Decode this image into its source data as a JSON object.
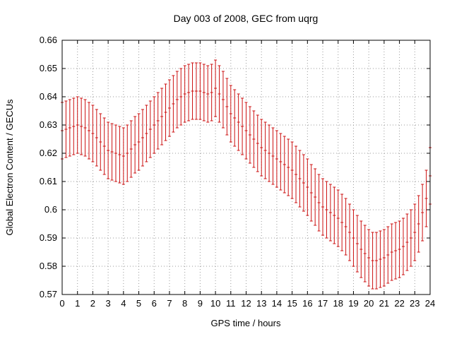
{
  "window": {
    "title": "Day 003 of 2008, GEC from uqrg"
  },
  "chart_data": {
    "type": "scatter",
    "style": "errorbars",
    "title": "Day 003 of 2008, GEC from uqrg",
    "xlabel": "GPS time / hours",
    "ylabel": "Global Electron Content / GECUs",
    "xlim": [
      0,
      24
    ],
    "ylim": [
      0.57,
      0.66
    ],
    "grid": true,
    "legend": "none",
    "series_color": "#cc1111",
    "frame_color": "#000000",
    "grid_color": "#9a9a9a",
    "xticks": [
      0,
      1,
      2,
      3,
      4,
      5,
      6,
      7,
      8,
      9,
      10,
      11,
      12,
      13,
      14,
      15,
      16,
      17,
      18,
      19,
      20,
      21,
      22,
      23,
      24
    ],
    "xtick_labels": [
      "0",
      "1",
      "2",
      "3",
      "4",
      "5",
      "6",
      "7",
      "8",
      "9",
      "10",
      "11",
      "12",
      "13",
      "14",
      "15",
      "16",
      "17",
      "18",
      "19",
      "20",
      "21",
      "22",
      "23",
      "24"
    ],
    "yticks": [
      0.57,
      0.58,
      0.59,
      0.6,
      0.61,
      0.62,
      0.63,
      0.64,
      0.65,
      0.66
    ],
    "ytick_labels": [
      "0.57",
      "0.58",
      "0.59",
      "0.6",
      "0.61",
      "0.62",
      "0.63",
      "0.64",
      "0.65",
      "0.66"
    ],
    "yerr": 0.01,
    "x": [
      0,
      0.25,
      0.5,
      0.75,
      1,
      1.25,
      1.5,
      1.75,
      2,
      2.25,
      2.5,
      2.75,
      3,
      3.25,
      3.5,
      3.75,
      4,
      4.25,
      4.5,
      4.75,
      5,
      5.25,
      5.5,
      5.75,
      6,
      6.25,
      6.5,
      6.75,
      7,
      7.25,
      7.5,
      7.75,
      8,
      8.25,
      8.5,
      8.75,
      9,
      9.25,
      9.5,
      9.75,
      10,
      10.25,
      10.5,
      10.75,
      11,
      11.25,
      11.5,
      11.75,
      12,
      12.25,
      12.5,
      12.75,
      13,
      13.25,
      13.5,
      13.75,
      14,
      14.25,
      14.5,
      14.75,
      15,
      15.25,
      15.5,
      15.75,
      16,
      16.25,
      16.5,
      16.75,
      17,
      17.25,
      17.5,
      17.75,
      18,
      18.25,
      18.5,
      18.75,
      19,
      19.25,
      19.5,
      19.75,
      20,
      20.25,
      20.5,
      20.75,
      21,
      21.25,
      21.5,
      21.75,
      22,
      22.25,
      22.5,
      22.75,
      23,
      23.25,
      23.5,
      23.75,
      24
    ],
    "y": [
      0.628,
      0.6285,
      0.629,
      0.6295,
      0.63,
      0.6295,
      0.629,
      0.628,
      0.627,
      0.6255,
      0.624,
      0.6225,
      0.621,
      0.6205,
      0.62,
      0.6195,
      0.619,
      0.62,
      0.6215,
      0.623,
      0.624,
      0.6255,
      0.627,
      0.6285,
      0.63,
      0.6315,
      0.633,
      0.6345,
      0.636,
      0.6375,
      0.639,
      0.64,
      0.641,
      0.6415,
      0.642,
      0.642,
      0.642,
      0.6415,
      0.641,
      0.6415,
      0.643,
      0.641,
      0.639,
      0.6365,
      0.634,
      0.6325,
      0.631,
      0.6295,
      0.628,
      0.6265,
      0.625,
      0.6235,
      0.622,
      0.621,
      0.62,
      0.619,
      0.618,
      0.617,
      0.616,
      0.615,
      0.614,
      0.6125,
      0.611,
      0.6095,
      0.608,
      0.606,
      0.6045,
      0.6025,
      0.601,
      0.6,
      0.599,
      0.598,
      0.597,
      0.5955,
      0.594,
      0.592,
      0.59,
      0.588,
      0.586,
      0.5845,
      0.583,
      0.582,
      0.582,
      0.5825,
      0.583,
      0.584,
      0.585,
      0.5855,
      0.586,
      0.587,
      0.5885,
      0.59,
      0.592,
      0.595,
      0.599,
      0.604,
      0.612
    ]
  }
}
